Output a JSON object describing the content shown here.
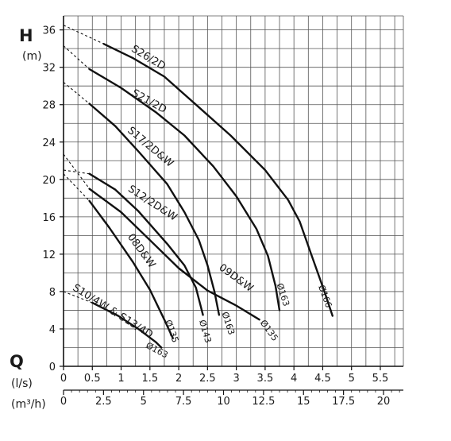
{
  "chart_data": {
    "type": "line",
    "title": "",
    "ylabel": "H",
    "yunit": "(m)",
    "xlabel": "Q",
    "xunit_primary": "(l/s)",
    "xunit_secondary": "(m³/h)",
    "xlim": [
      0,
      5.9
    ],
    "ylim": [
      0,
      37.5
    ],
    "grid": true,
    "y_ticks": [
      0,
      4,
      8,
      12,
      16,
      20,
      24,
      28,
      32,
      36
    ],
    "x_ticks": [
      0,
      0.5,
      1,
      1.5,
      2,
      2.5,
      3,
      3.5,
      4,
      4.5,
      5,
      5.5
    ],
    "x_tick_labels": [
      "0",
      "0.5",
      "1",
      "1.5",
      "2",
      "2.5",
      "3",
      "3.5",
      "4",
      "4.5",
      "5",
      "5.5"
    ],
    "x2_ticks": [
      0,
      2.5,
      5,
      7.5,
      10,
      12.5,
      15,
      17.5,
      20
    ],
    "x2_tick_labels": [
      "0",
      "2.5",
      "5",
      "7.5",
      "10",
      "12.5",
      "15",
      "17.5",
      "20"
    ],
    "series": [
      {
        "name": "S26/2D",
        "dashed": [
          [
            0,
            36.5
          ],
          [
            0.7,
            34.5
          ]
        ],
        "points": [
          [
            0.7,
            34.5
          ],
          [
            1.2,
            33.0
          ],
          [
            1.75,
            31.0
          ],
          [
            2.3,
            28.0
          ],
          [
            2.9,
            24.7
          ],
          [
            3.5,
            21.0
          ],
          [
            3.9,
            17.8
          ],
          [
            4.1,
            15.5
          ],
          [
            4.3,
            12.0
          ],
          [
            4.53,
            8.0
          ],
          [
            4.67,
            5.4
          ]
        ],
        "diameter_label": "Ø166"
      },
      {
        "name": "S21/2D",
        "dashed": [
          [
            0,
            34.3
          ],
          [
            0.45,
            31.8
          ]
        ],
        "points": [
          [
            0.45,
            31.8
          ],
          [
            1.0,
            29.8
          ],
          [
            1.6,
            27.2
          ],
          [
            2.1,
            24.7
          ],
          [
            2.6,
            21.4
          ],
          [
            3.0,
            18.2
          ],
          [
            3.35,
            14.7
          ],
          [
            3.55,
            11.8
          ],
          [
            3.68,
            8.6
          ],
          [
            3.75,
            6.0
          ]
        ],
        "diameter_label": "Ø163"
      },
      {
        "name": "S17/2D&W",
        "dashed": [
          [
            0,
            30.4
          ],
          [
            0.45,
            28.1
          ]
        ],
        "points": [
          [
            0.45,
            28.1
          ],
          [
            0.9,
            25.7
          ],
          [
            1.3,
            23.0
          ],
          [
            1.8,
            19.5
          ],
          [
            2.1,
            16.5
          ],
          [
            2.35,
            13.5
          ],
          [
            2.5,
            10.8
          ],
          [
            2.62,
            8.0
          ],
          [
            2.7,
            5.5
          ]
        ],
        "diameter_label": "Ø163"
      },
      {
        "name": "S12/2D&W",
        "dashed": [
          [
            0,
            21.0
          ],
          [
            0.45,
            20.6
          ]
        ],
        "points": [
          [
            0.45,
            20.6
          ],
          [
            0.9,
            18.9
          ],
          [
            1.3,
            16.6
          ],
          [
            1.8,
            13.1
          ],
          [
            2.1,
            10.8
          ],
          [
            2.3,
            8.4
          ],
          [
            2.42,
            5.5
          ]
        ],
        "diameter_label": "Ø143"
      },
      {
        "name": "09D&W",
        "dashed": [
          [
            0,
            22.7
          ],
          [
            0.45,
            19.0
          ]
        ],
        "points": [
          [
            0.45,
            19.0
          ],
          [
            1.0,
            16.5
          ],
          [
            1.5,
            13.5
          ],
          [
            2.0,
            10.5
          ],
          [
            2.5,
            8.1
          ],
          [
            3.0,
            6.5
          ],
          [
            3.4,
            5.0
          ]
        ],
        "diameter_label": "Ø135"
      },
      {
        "name": "08D&W",
        "dashed": [
          [
            0,
            20.6
          ],
          [
            0.45,
            17.7
          ]
        ],
        "points": [
          [
            0.45,
            17.7
          ],
          [
            0.8,
            14.8
          ],
          [
            1.2,
            11.2
          ],
          [
            1.5,
            8.2
          ],
          [
            1.75,
            5.0
          ],
          [
            1.9,
            3.0
          ]
        ],
        "diameter_label": "Ø135"
      },
      {
        "name": "S10/4W & S13/4D",
        "dashed": [
          [
            0,
            8.0
          ],
          [
            0.5,
            6.8
          ]
        ],
        "points": [
          [
            0.5,
            6.8
          ],
          [
            0.95,
            5.4
          ],
          [
            1.3,
            4.0
          ],
          [
            1.6,
            2.6
          ],
          [
            1.7,
            2.0
          ]
        ],
        "diameter_label": "Ø163"
      }
    ]
  }
}
